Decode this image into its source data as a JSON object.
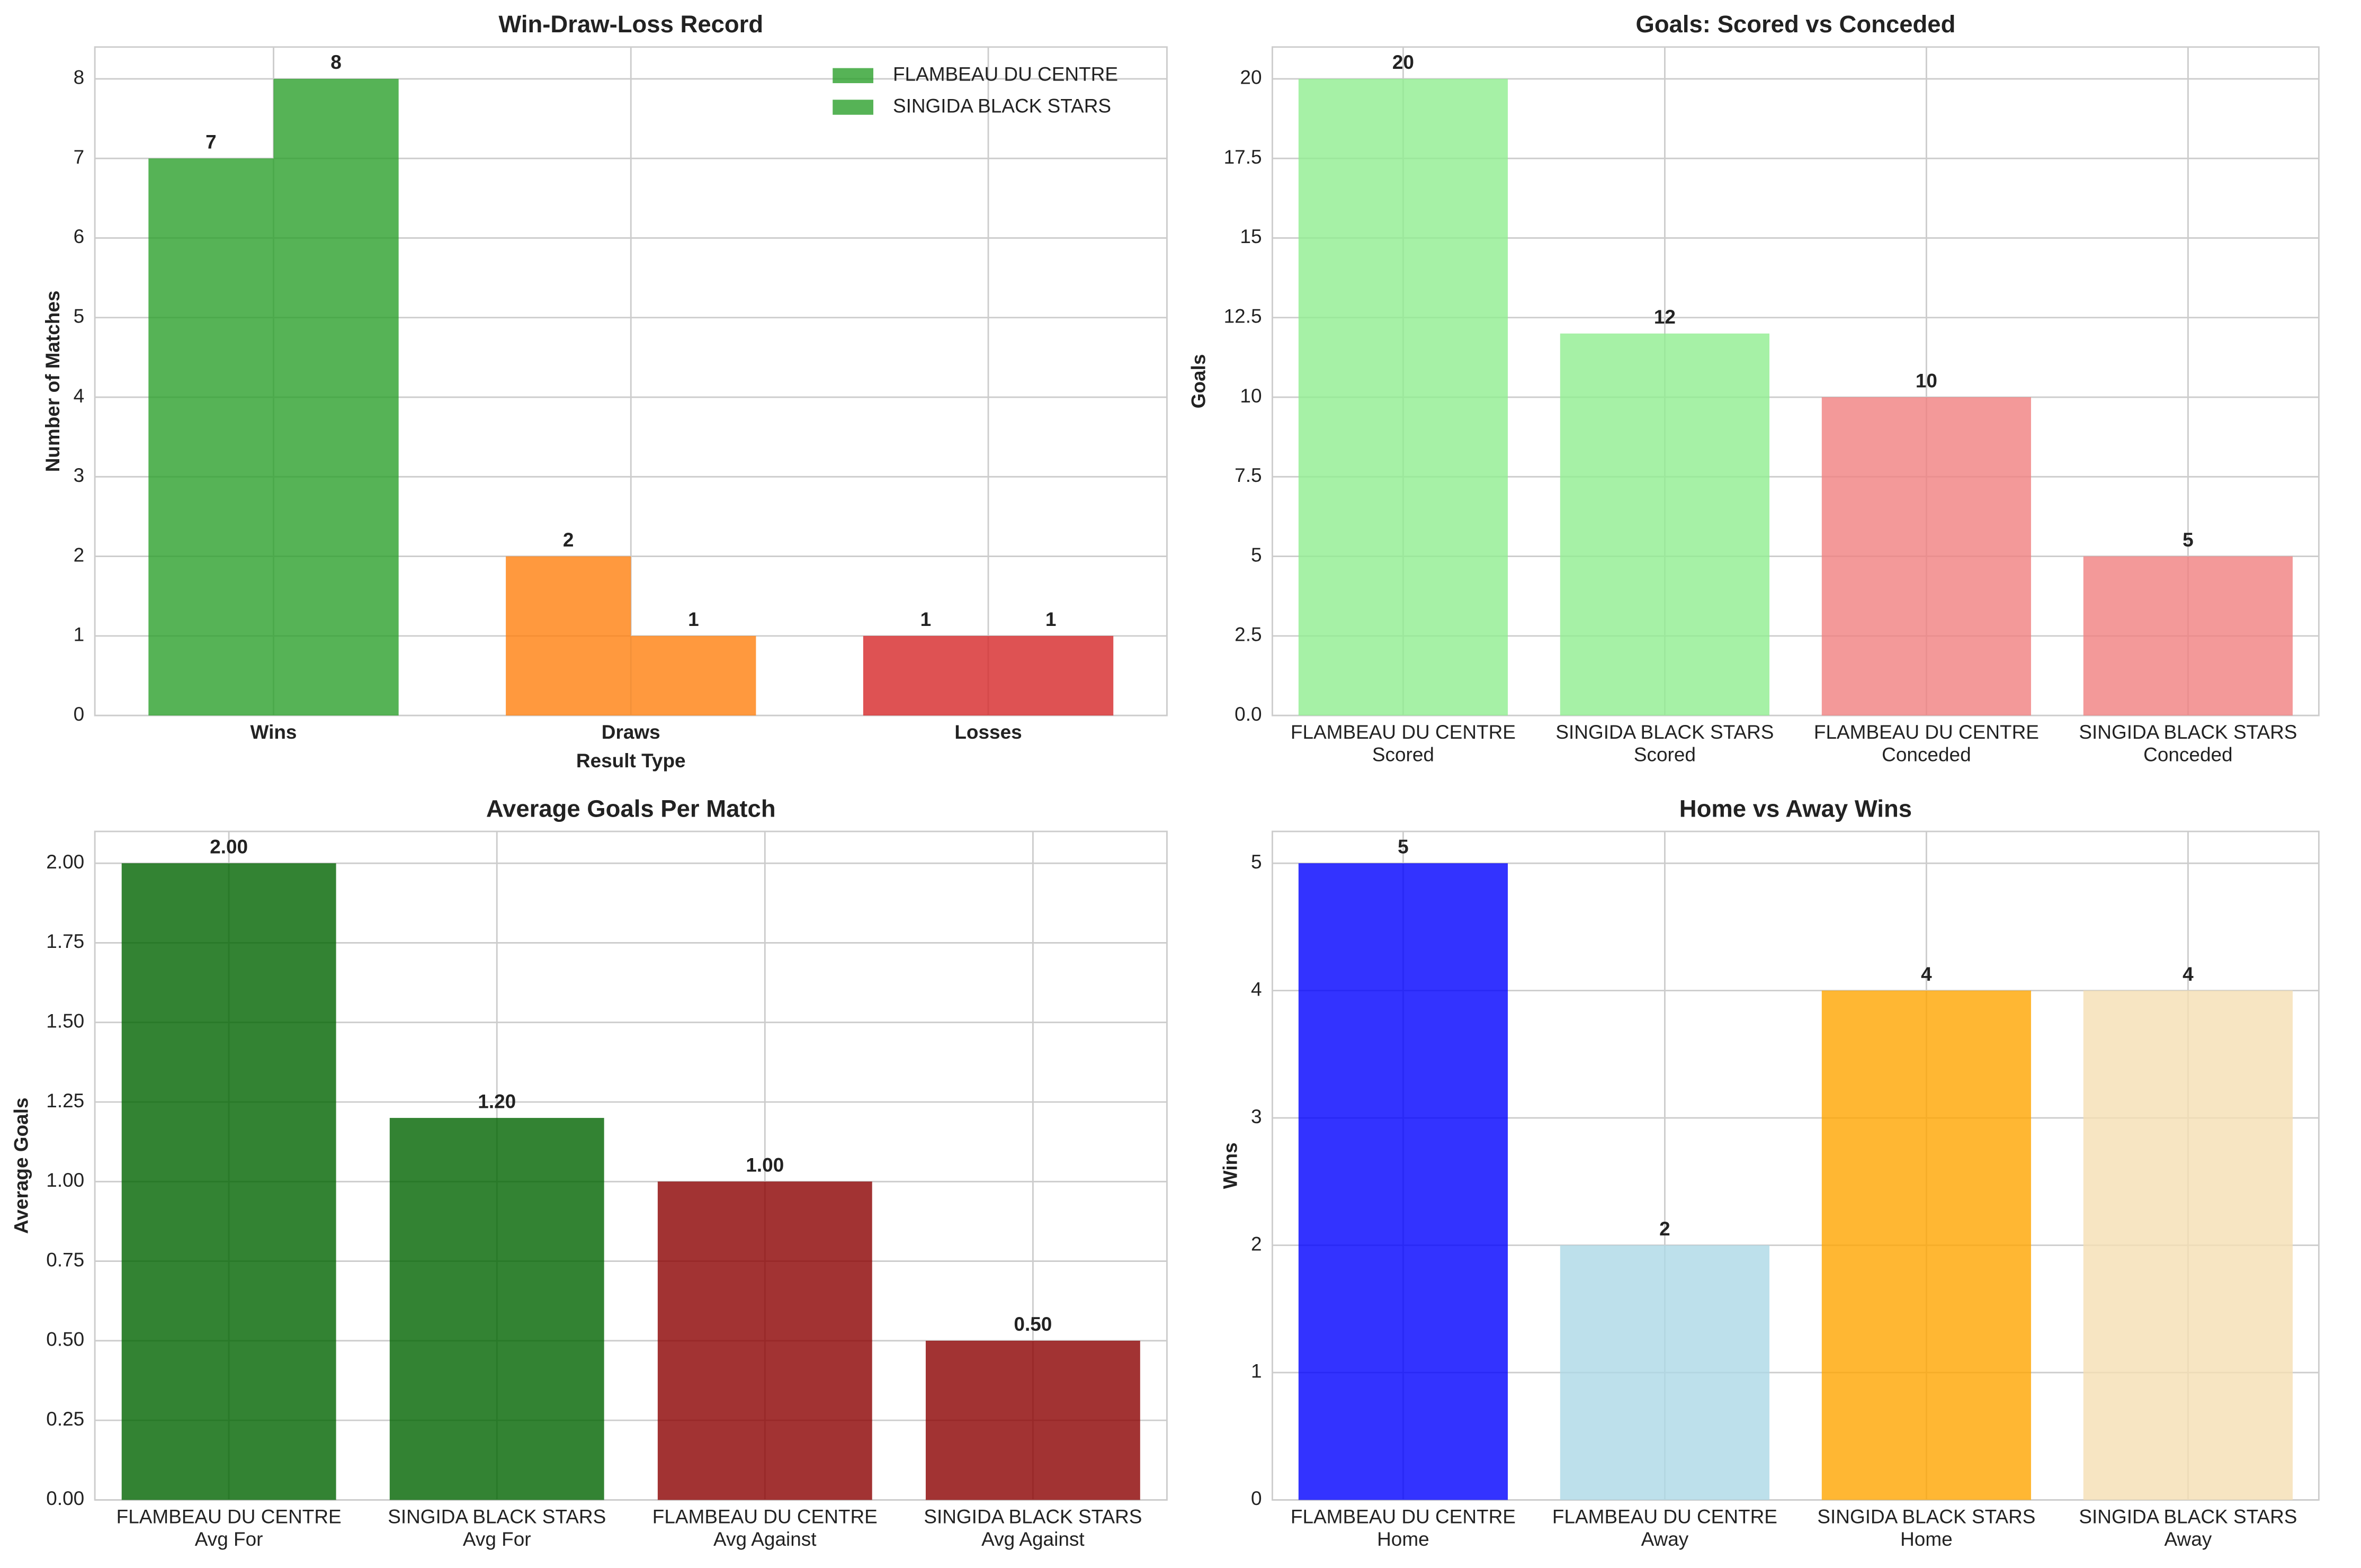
{
  "chart_data": [
    {
      "type": "bar",
      "title": "Win-Draw-Loss Record",
      "xlabel": "Result Type",
      "ylabel": "Number of Matches",
      "categories": [
        "Wins",
        "Draws",
        "Losses"
      ],
      "category_font_weight": "bold",
      "series": [
        {
          "name": "FLAMBEAU DU CENTRE",
          "color": "#2ca02c",
          "values": [
            7,
            2,
            1
          ]
        },
        {
          "name": "SINGIDA BLACK STARS",
          "color": "#2ca02c",
          "values": [
            8,
            1,
            1
          ]
        }
      ],
      "category_colors": [
        "#2ca02c",
        "#ff7f0e",
        "#d62728"
      ],
      "alpha": 0.8,
      "ylim": [
        0,
        8.4
      ],
      "yticks": [
        0,
        1,
        2,
        3,
        4,
        5,
        6,
        7,
        8
      ],
      "grid": true,
      "legend": "upper right"
    },
    {
      "type": "bar",
      "title": "Goals: Scored vs Conceded",
      "ylabel": "Goals",
      "categories": [
        [
          "FLAMBEAU DU CENTRE",
          "Scored"
        ],
        [
          "SINGIDA BLACK STARS",
          "Scored"
        ],
        [
          "FLAMBEAU DU CENTRE",
          "Conceded"
        ],
        [
          "SINGIDA BLACK STARS",
          "Conceded"
        ]
      ],
      "values": [
        20,
        12,
        10,
        5
      ],
      "colors": [
        "#90ee90",
        "#90ee90",
        "#f08080",
        "#f08080"
      ],
      "alpha": 0.8,
      "ylim": [
        0,
        21
      ],
      "yticks": [
        {
          "value": 0,
          "label": "0.0"
        },
        2.5,
        5,
        7.5,
        10,
        12.5,
        15,
        17.5,
        20
      ],
      "ytick_labels_fixed": 1,
      "grid": true
    },
    {
      "type": "bar",
      "title": "Average Goals Per Match",
      "ylabel": "Average Goals",
      "categories": [
        [
          "FLAMBEAU DU CENTRE",
          "Avg For"
        ],
        [
          "SINGIDA BLACK STARS",
          "Avg For"
        ],
        [
          "FLAMBEAU DU CENTRE",
          "Avg Against"
        ],
        [
          "SINGIDA BLACK STARS",
          "Avg Against"
        ]
      ],
      "values": [
        2,
        1.2,
        1,
        0.5
      ],
      "value_labels": [
        "2.00",
        "1.20",
        "1.00",
        "0.50"
      ],
      "colors": [
        "#006400",
        "#006400",
        "#8b0000",
        "#8b0000"
      ],
      "alpha": 0.8,
      "ylim": [
        0,
        2.1
      ],
      "yticks": [
        {
          "value": 0,
          "label": "0.00"
        },
        {
          "value": 0.25,
          "label": "0.25"
        },
        {
          "value": 0.5,
          "label": "0.50"
        },
        {
          "value": 0.75,
          "label": "0.75"
        },
        {
          "value": 1,
          "label": "1.00"
        },
        {
          "value": 1.25,
          "label": "1.25"
        },
        {
          "value": 1.5,
          "label": "1.50"
        },
        {
          "value": 1.75,
          "label": "1.75"
        },
        {
          "value": 2,
          "label": "2.00"
        }
      ],
      "grid": true
    },
    {
      "type": "bar",
      "title": "Home vs Away Wins",
      "ylabel": "Wins",
      "categories": [
        [
          "FLAMBEAU DU CENTRE",
          "Home"
        ],
        [
          "FLAMBEAU DU CENTRE",
          "Away"
        ],
        [
          "SINGIDA BLACK STARS",
          "Home"
        ],
        [
          "SINGIDA BLACK STARS",
          "Away"
        ]
      ],
      "values": [
        5,
        2,
        4,
        4
      ],
      "colors": [
        "#0000ff",
        "#add8e6",
        "#ffa500",
        "#f5deb3"
      ],
      "alpha": 0.8,
      "ylim": [
        0,
        5.25
      ],
      "yticks": [
        0,
        1,
        2,
        3,
        4,
        5
      ],
      "grid": true
    }
  ]
}
